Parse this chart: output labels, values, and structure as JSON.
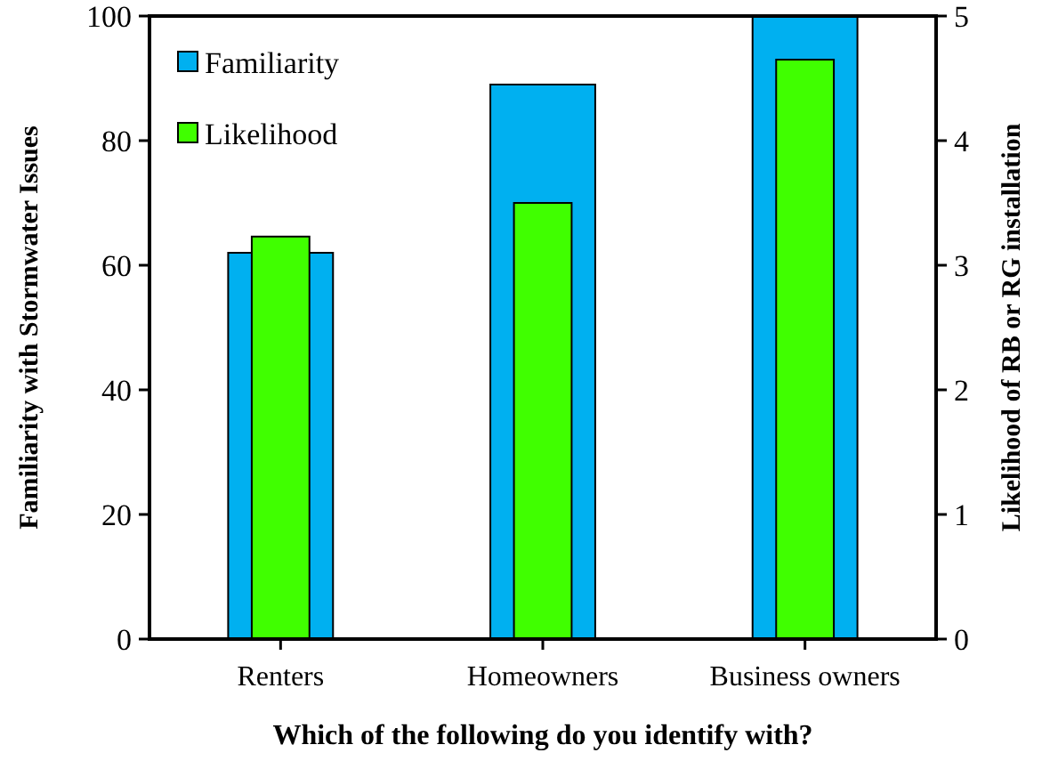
{
  "chart_data": {
    "type": "bar",
    "xlabel": "Which of the following do you identify with?",
    "ylabel": "Familiarity with Stormwater Issues",
    "y2label": "Likelihood of RB or RG installation",
    "categories": [
      "Renters",
      "Homeowners",
      "Business owners"
    ],
    "series": [
      {
        "name": "Familiarity",
        "color": "#00b0f0",
        "values": [
          62,
          89,
          100
        ]
      },
      {
        "name": "Likelihood",
        "color": "#40ff00",
        "values": [
          3.23,
          3.5,
          4.65
        ],
        "axis": "y2"
      }
    ],
    "ylim": [
      0,
      100
    ],
    "yticks": [
      0,
      20,
      40,
      60,
      80,
      100
    ],
    "y2lim": [
      0,
      5
    ],
    "y2ticks": [
      0,
      1,
      2,
      3,
      4,
      5
    ],
    "grid": false,
    "legend": "top left"
  }
}
